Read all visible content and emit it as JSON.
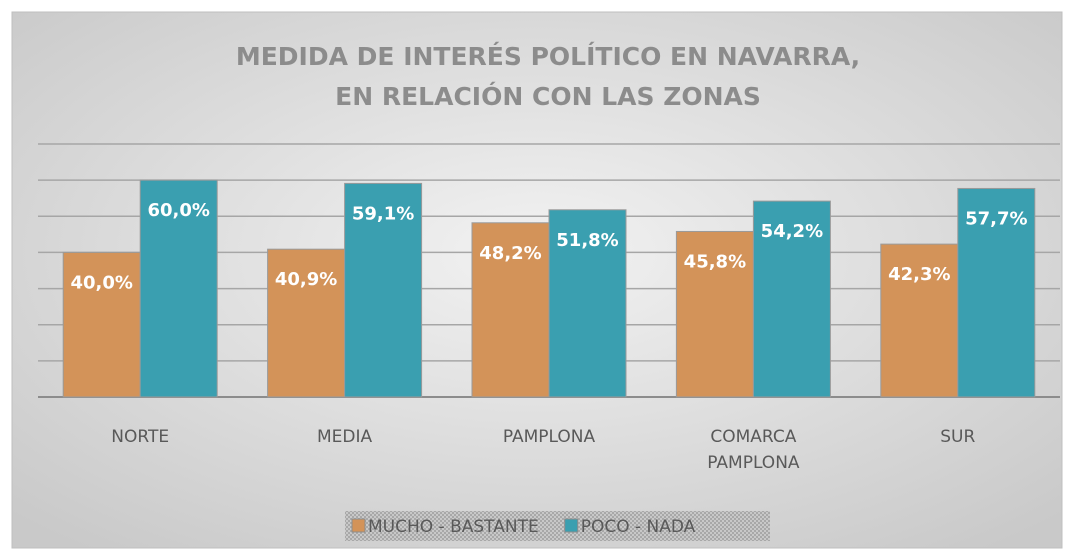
{
  "chart_data": {
    "type": "bar",
    "title": [
      "MEDIDA DE INTERÉS POLÍTICO EN NAVARRA,",
      "EN RELACIÓN CON LAS ZONAS"
    ],
    "categories": [
      "NORTE",
      "MEDIA",
      "PAMPLONA",
      "COMARCA PAMPLONA",
      "SUR"
    ],
    "series": [
      {
        "name": "MUCHO - BASTANTE",
        "color": "#d39359",
        "values": [
          40.0,
          40.9,
          48.2,
          45.8,
          42.3
        ],
        "value_labels": [
          "40,0%",
          "40,9%",
          "48,2%",
          "45,8%",
          "42,3%"
        ]
      },
      {
        "name": "POCO - NADA",
        "color": "#3a9fb0",
        "values": [
          60.0,
          59.1,
          51.8,
          54.2,
          57.7
        ],
        "value_labels": [
          "60,0%",
          "59,1%",
          "51,8%",
          "54,2%",
          "57,7%"
        ]
      }
    ],
    "ylim": [
      0,
      70
    ],
    "yticks": [
      0,
      10,
      20,
      30,
      40,
      50,
      60,
      70
    ],
    "grid": true
  }
}
